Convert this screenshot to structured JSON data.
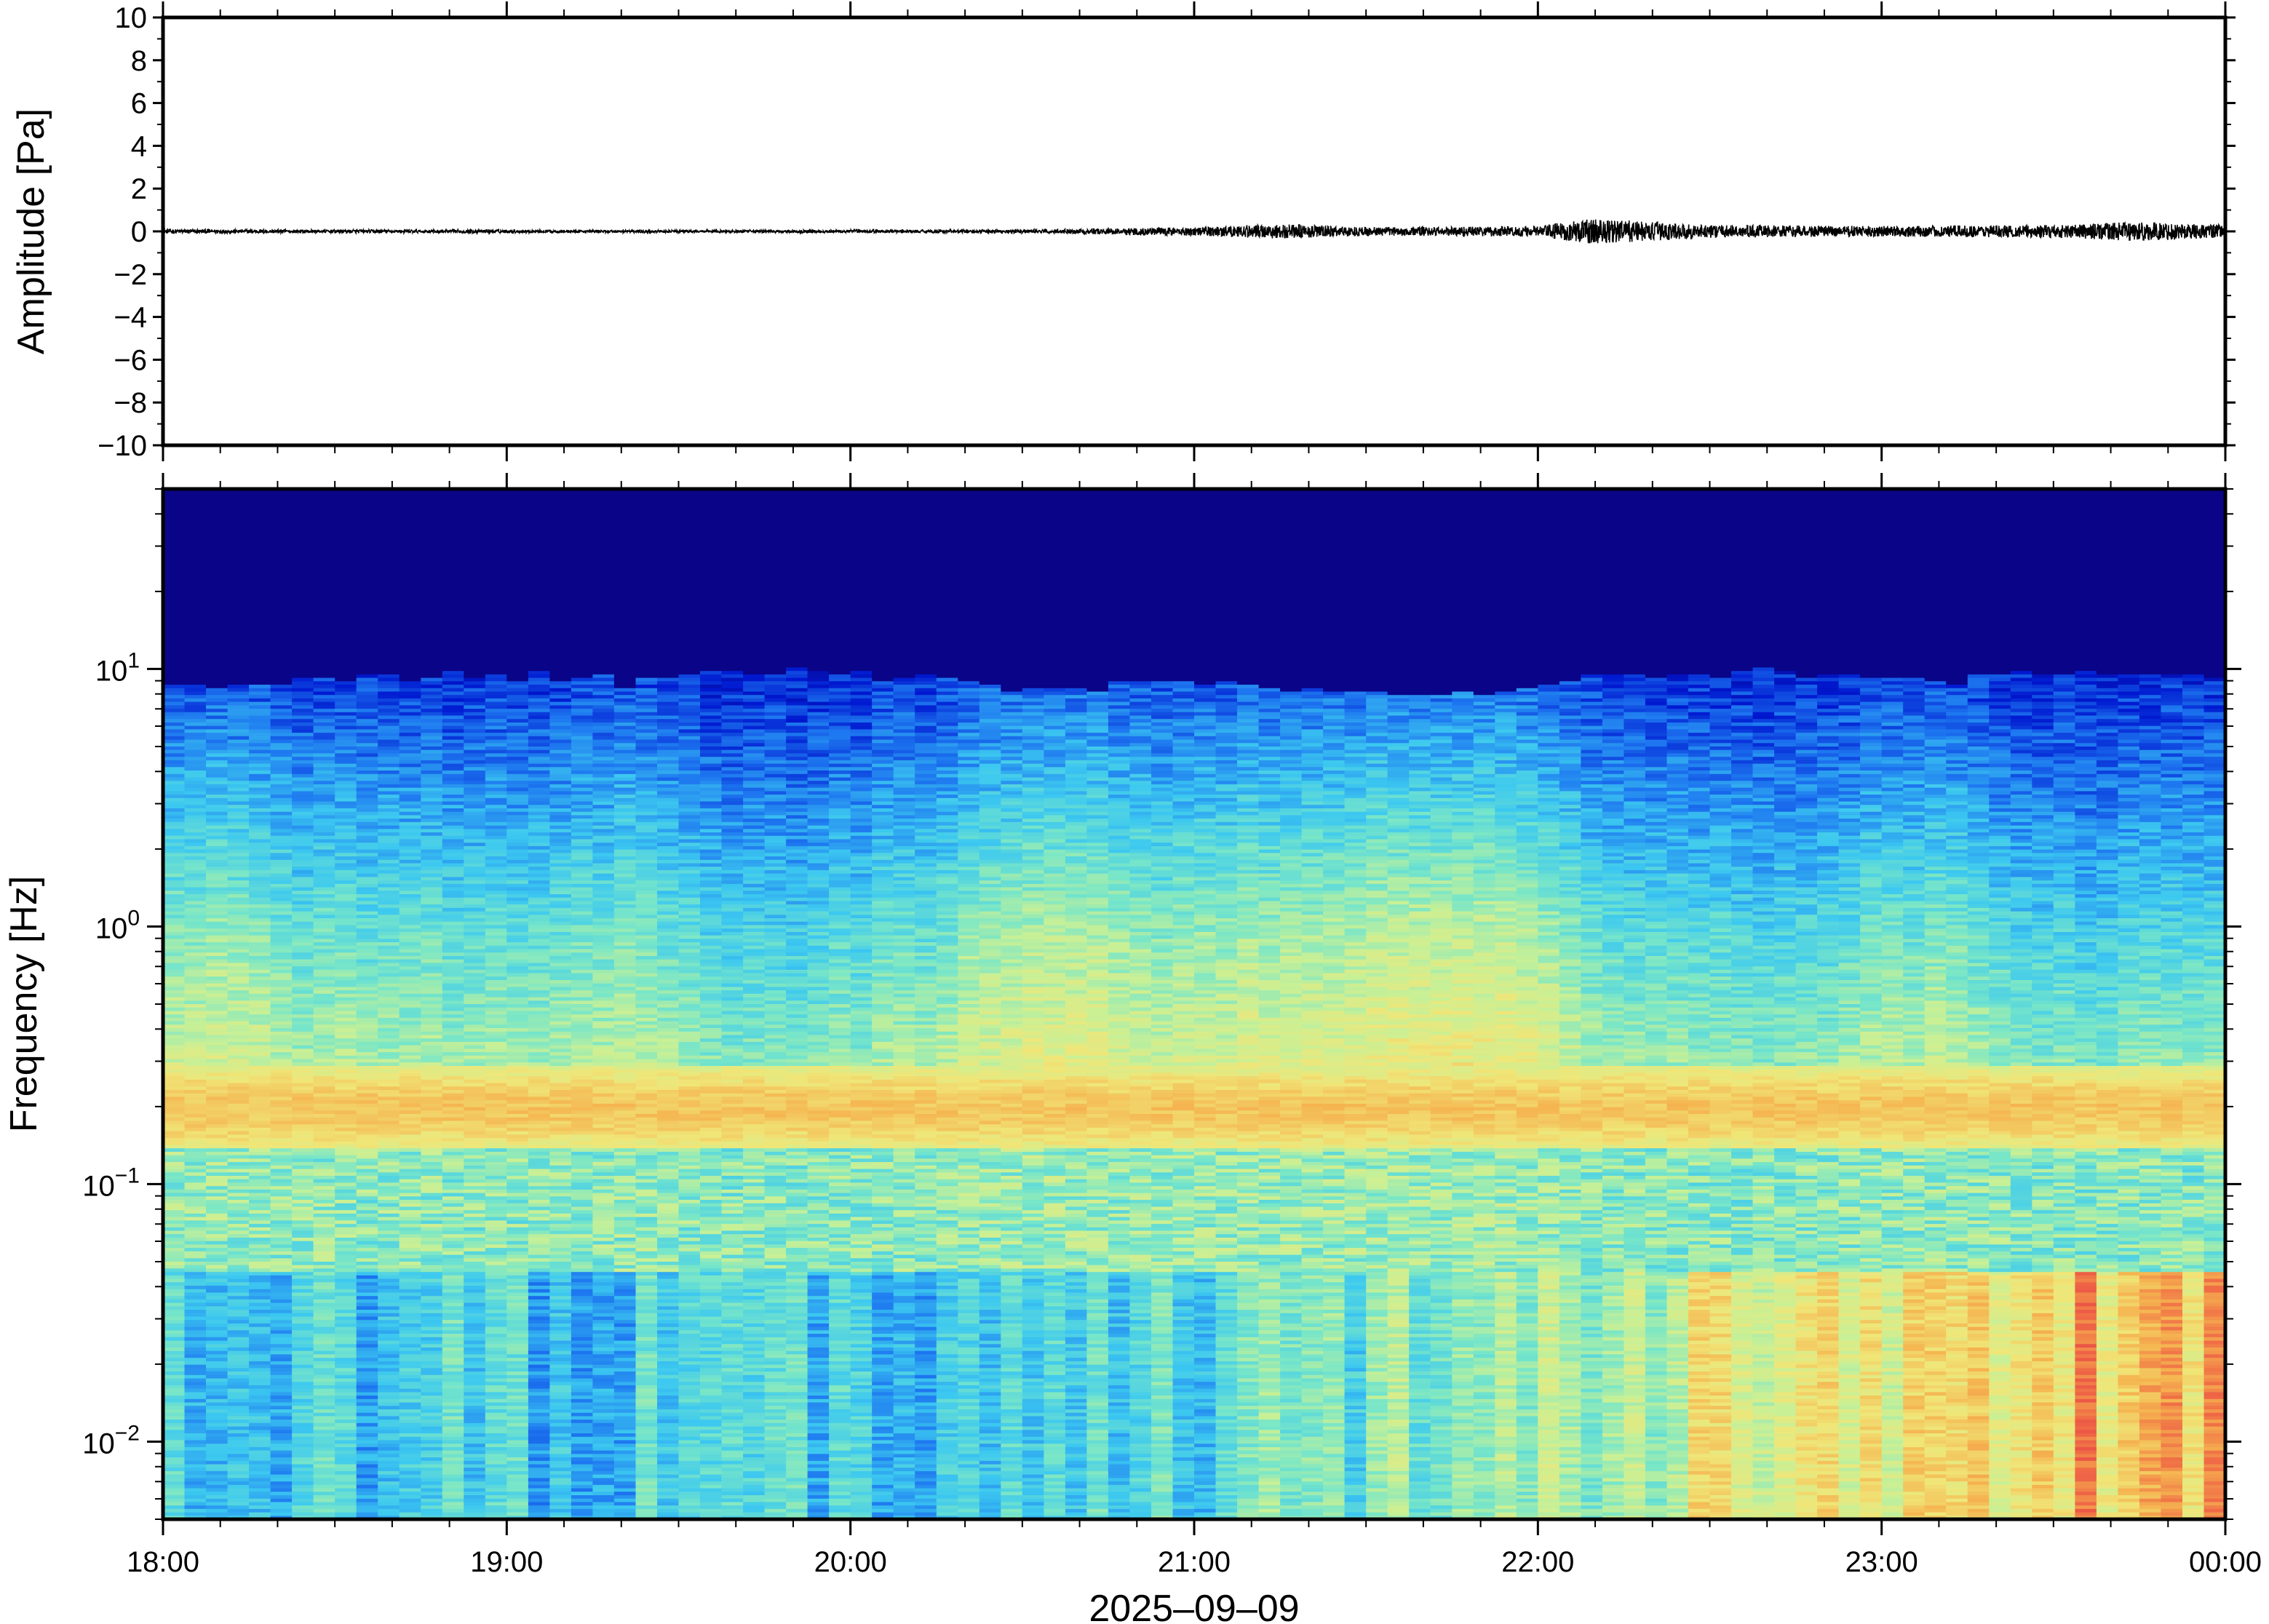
{
  "chart_data": [
    {
      "type": "line",
      "ylabel": "Amplitude [Pa]",
      "ylim": [
        -10,
        10
      ],
      "y_ticks": [
        "10",
        "8",
        "6",
        "4",
        "2",
        "0",
        "−2",
        "−4",
        "−6",
        "−8",
        "−10"
      ],
      "series": [
        {
          "x": [
            "18:00",
            "18:30",
            "19:00",
            "19:30",
            "20:00",
            "20:30",
            "21:00",
            "21:15",
            "21:30",
            "22:00",
            "22:05",
            "22:10",
            "22:30",
            "23:00",
            "23:30",
            "23:45",
            "00:00"
          ],
          "values": [
            0.1,
            0.08,
            0.08,
            0.06,
            0.07,
            0.08,
            0.2,
            0.35,
            0.2,
            0.25,
            0.45,
            0.6,
            0.3,
            0.25,
            0.3,
            0.45,
            0.3
          ]
        }
      ],
      "grid": false
    },
    {
      "type": "heatmap",
      "ylabel": "Frequency [Hz]",
      "xlabel": "2025–09–09",
      "yscale": "log",
      "ylim": [
        0.005,
        50
      ],
      "y_ticks": [
        {
          "base": "10",
          "exp": "1",
          "value": 10
        },
        {
          "base": "10",
          "exp": "0",
          "value": 1
        },
        {
          "base": "10",
          "exp": "−1",
          "value": 0.1
        },
        {
          "base": "10",
          "exp": "−2",
          "value": 0.01
        }
      ],
      "x_ticks": [
        "18:00",
        "19:00",
        "20:00",
        "21:00",
        "22:00",
        "23:00",
        "00:00"
      ],
      "colormap": "jet",
      "colors": [
        "#0c0078",
        "#0018d0",
        "#1e78f0",
        "#3cc8f0",
        "#78e6c8",
        "#c8f096",
        "#f0e678",
        "#f5b450",
        "#f06e46",
        "#e63c46"
      ],
      "grid": false
    }
  ]
}
